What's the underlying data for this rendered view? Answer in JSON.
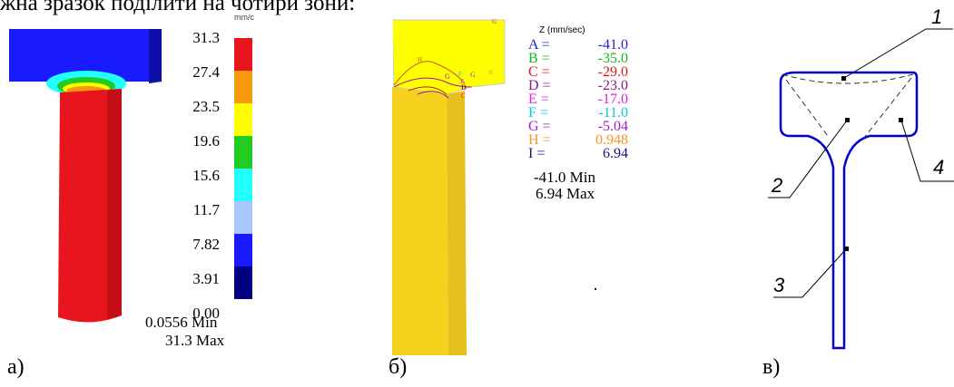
{
  "caption_top": "жна зразок поділити на чотири зони:",
  "panel_a": {
    "label": "а)",
    "unit": "mm/c",
    "scale": [
      "31.3",
      "27.4",
      "23.5",
      "19.6",
      "15.6",
      "11.7",
      "7.82",
      "3.91",
      "0.00"
    ],
    "scale_colors": [
      "#e8141e",
      "#f59a0b",
      "#ffff00",
      "#22cc22",
      "#22ffff",
      "#a8c8ff",
      "#1a1aff",
      "#000080"
    ],
    "min_text": "0.0556  Min",
    "max_text": "31.3  Max"
  },
  "panel_b": {
    "label": "б)",
    "title": "Z (mm/sec)",
    "legend": [
      {
        "key": "A =",
        "value": "-41.0",
        "color": "#1f1fd6"
      },
      {
        "key": "B =",
        "value": "-35.0",
        "color": "#19b419"
      },
      {
        "key": "C =",
        "value": "-29.0",
        "color": "#e0141e"
      },
      {
        "key": "D =",
        "value": "-23.0",
        "color": "#8b1a8b"
      },
      {
        "key": "E =",
        "value": "-17.0",
        "color": "#e61ee6"
      },
      {
        "key": "F =",
        "value": "-11.0",
        "color": "#00c8e6"
      },
      {
        "key": "G =",
        "value": "-5.04",
        "color": "#a020d0"
      },
      {
        "key": "H =",
        "value": "0.948",
        "color": "#f0961e"
      },
      {
        "key": "I =",
        "value": "6.94",
        "color": "#141478"
      }
    ],
    "min_text": "-41.0  Min",
    "max_text": "6.94  Max",
    "contour_letters": [
      "H",
      "G",
      "F",
      "E",
      "D",
      "C",
      "G",
      "H",
      "G"
    ]
  },
  "panel_c": {
    "label": "в)",
    "zones": [
      "1",
      "2",
      "3",
      "4"
    ]
  }
}
